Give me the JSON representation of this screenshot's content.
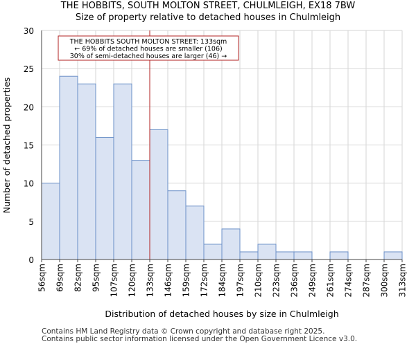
{
  "chart_data": {
    "type": "bar",
    "title": "THE HOBBITS, SOUTH MOLTON STREET, CHULMLEIGH, EX18 7BW",
    "subtitle": "Size of property relative to detached houses in Chulmleigh",
    "xlabel": "Distribution of detached houses by size in Chulmleigh",
    "ylabel": "Number of detached properties",
    "bin_edges": [
      "56sqm",
      "69sqm",
      "82sqm",
      "95sqm",
      "107sqm",
      "120sqm",
      "133sqm",
      "146sqm",
      "159sqm",
      "172sqm",
      "184sqm",
      "197sqm",
      "210sqm",
      "223sqm",
      "236sqm",
      "249sqm",
      "261sqm",
      "274sqm",
      "287sqm",
      "300sqm",
      "313sqm"
    ],
    "values": [
      10,
      24,
      23,
      16,
      23,
      13,
      17,
      9,
      7,
      2,
      4,
      1,
      2,
      1,
      1,
      0,
      1,
      0,
      0,
      1
    ],
    "ylim": [
      0,
      30
    ],
    "yticks": [
      0,
      5,
      10,
      15,
      20,
      25,
      30
    ],
    "marker_bin_index": 6,
    "annotation": [
      "THE HOBBITS SOUTH MOLTON STREET: 133sqm",
      "← 69% of detached houses are smaller (106)",
      "30% of semi-detached houses are larger (46) →"
    ],
    "colors": {
      "bar_fill": "#dae3f3",
      "bar_stroke": "#6a8fc7",
      "marker": "#b22222",
      "grid": "#d6d6d6"
    }
  },
  "footer": [
    "Contains HM Land Registry data © Crown copyright and database right 2025.",
    "Contains public sector information licensed under the Open Government Licence v3.0."
  ]
}
